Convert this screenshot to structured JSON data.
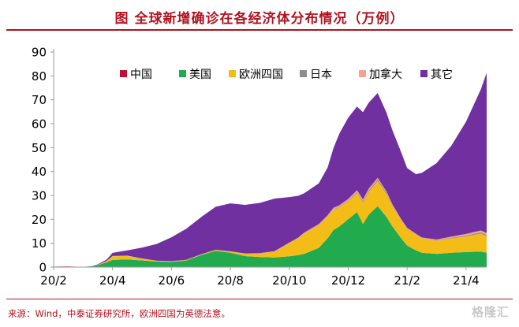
{
  "title": "图  全球新增确诊在各经济体分布情况（万例）",
  "source": "来源：Wind，中泰证券研究所，欧洲四国为英德法意。",
  "watermark": "格隆汇",
  "chart_data": {
    "type": "area",
    "stacked": true,
    "ylim": [
      0,
      90
    ],
    "yticks": [
      0,
      10,
      20,
      30,
      40,
      50,
      60,
      70,
      80,
      90
    ],
    "xlim": [
      0,
      14.7
    ],
    "xtick_labels": [
      "20/2",
      "20/4",
      "20/6",
      "20/8",
      "20/10",
      "20/12",
      "21/2",
      "21/4"
    ],
    "xtick_positions": [
      0,
      2,
      4,
      6,
      8,
      10,
      12,
      14
    ],
    "legend_position": "top-right",
    "grid": false,
    "x": [
      0,
      0.5,
      1,
      1.3,
      1.5,
      1.8,
      2,
      2.5,
      3,
      3.5,
      4,
      4.5,
      5,
      5.5,
      6,
      6.5,
      7,
      7.5,
      8,
      8.3,
      8.5,
      9,
      9.3,
      9.5,
      9.7,
      10,
      10.3,
      10.5,
      10.7,
      11,
      11.3,
      11.5,
      11.8,
      12,
      12.3,
      12.5,
      13,
      13.5,
      14,
      14.5,
      14.7
    ],
    "series": [
      {
        "name": "中国",
        "color": "#c0103a",
        "values": [
          0.2,
          0.3,
          0.05,
          0.02,
          0.02,
          0.02,
          0.02,
          0.02,
          0.02,
          0.02,
          0.02,
          0.02,
          0.02,
          0.02,
          0.02,
          0.02,
          0.02,
          0.02,
          0.02,
          0.02,
          0.02,
          0.02,
          0.02,
          0.02,
          0.02,
          0.02,
          0.02,
          0.02,
          0.02,
          0.02,
          0.02,
          0.02,
          0.02,
          0.02,
          0.02,
          0.02,
          0.02,
          0.02,
          0.02,
          0.02,
          0.02
        ]
      },
      {
        "name": "美国",
        "color": "#21ab4e",
        "values": [
          0,
          0,
          0,
          0.3,
          0.8,
          2.0,
          3.0,
          3.2,
          2.8,
          2.3,
          2.2,
          2.7,
          5.0,
          6.8,
          6.0,
          4.6,
          4.2,
          4.0,
          4.5,
          5.0,
          5.5,
          8.0,
          12.0,
          15.5,
          17.0,
          20.0,
          23.0,
          18.0,
          22.0,
          25.5,
          21.0,
          17.0,
          12.0,
          9.0,
          7.0,
          6.0,
          5.5,
          6.0,
          6.3,
          6.5,
          6.0
        ]
      },
      {
        "name": "欧洲四国",
        "color": "#f3bc16",
        "values": [
          0,
          0,
          0,
          0,
          0.1,
          0.5,
          1.5,
          1.4,
          0.7,
          0.3,
          0.2,
          0.2,
          0.2,
          0.3,
          0.5,
          1.0,
          1.5,
          2.5,
          5.5,
          7.0,
          8.5,
          9.5,
          9.0,
          8.5,
          8.0,
          7.5,
          8.0,
          9.0,
          9.5,
          10.5,
          9.5,
          8.5,
          7.5,
          7.0,
          6.5,
          6.0,
          5.5,
          6.0,
          6.5,
          7.5,
          7.0
        ]
      },
      {
        "name": "日本",
        "color": "#8c8c8c",
        "values": [
          0,
          0,
          0,
          0,
          0.01,
          0.02,
          0.05,
          0.05,
          0.02,
          0.02,
          0.05,
          0.08,
          0.1,
          0.1,
          0.1,
          0.08,
          0.08,
          0.06,
          0.06,
          0.06,
          0.06,
          0.1,
          0.15,
          0.2,
          0.2,
          0.3,
          0.4,
          0.5,
          0.55,
          0.6,
          0.5,
          0.3,
          0.15,
          0.12,
          0.1,
          0.1,
          0.15,
          0.25,
          0.35,
          0.5,
          0.5
        ]
      },
      {
        "name": "加拿大",
        "color": "#f2a390",
        "values": [
          0,
          0,
          0,
          0,
          0.01,
          0.05,
          0.1,
          0.15,
          0.1,
          0.05,
          0.03,
          0.03,
          0.03,
          0.03,
          0.03,
          0.03,
          0.05,
          0.1,
          0.2,
          0.25,
          0.3,
          0.4,
          0.5,
          0.6,
          0.65,
          0.7,
          0.75,
          0.8,
          0.8,
          0.75,
          0.6,
          0.45,
          0.35,
          0.3,
          0.3,
          0.3,
          0.35,
          0.5,
          0.7,
          0.8,
          0.8
        ]
      },
      {
        "name": "其它",
        "color": "#7030a0",
        "values": [
          0,
          0,
          0.05,
          0.1,
          0.2,
          0.6,
          1.3,
          2.2,
          4.5,
          7.0,
          10.0,
          13.0,
          15.5,
          18.0,
          20.0,
          20.3,
          21.0,
          22.0,
          19.0,
          17.5,
          16.5,
          17.0,
          20.0,
          25.0,
          30.0,
          34.0,
          35.0,
          36.5,
          36.0,
          35.5,
          33.0,
          31.0,
          28.0,
          25.0,
          25.0,
          27.0,
          32.0,
          38.0,
          47.0,
          59.0,
          67.0
        ]
      }
    ]
  }
}
